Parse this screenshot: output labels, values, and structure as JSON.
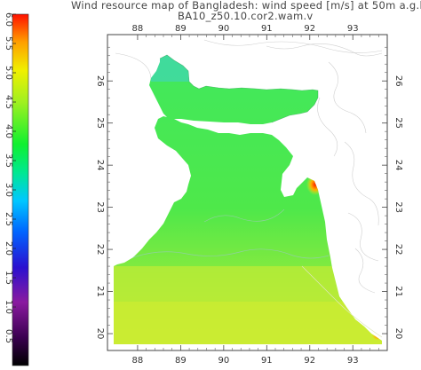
{
  "title": {
    "line1": "Wind resource map of Bangladesh: wind speed [m/s] at 50m a.g.l.",
    "line2": "BA10_z50.10.cor2.wam.v"
  },
  "colorbar": {
    "ticks": [
      "0.5",
      "1.0",
      "1.5",
      "2.0",
      "2.5",
      "3.0",
      "3.5",
      "4.0",
      "4.5",
      "5.0",
      "5.5",
      "6.0"
    ],
    "min": 0.0,
    "max": 6.0
  },
  "axes": {
    "x_ticks": [
      "88",
      "89",
      "90",
      "91",
      "92",
      "93"
    ],
    "y_ticks": [
      "20",
      "21",
      "22",
      "23",
      "24",
      "25",
      "26"
    ],
    "x_range": [
      87.3,
      93.8
    ],
    "y_range": [
      19.6,
      27.1
    ]
  },
  "colors": {
    "land_main": "#5ee84a",
    "land_south": "#b7ec38",
    "coast_high": "#d8e020",
    "peak": "#ff3a10",
    "background": "#ffffff"
  }
}
